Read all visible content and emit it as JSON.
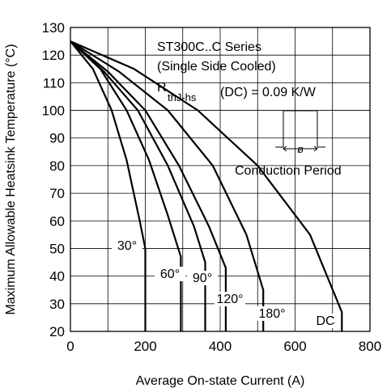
{
  "chart_data": {
    "type": "line",
    "title": "",
    "xlabel": "Average On-state Current (A)",
    "ylabel": "Maximum Allowable Heatsink Temperature (°C)",
    "xlim": [
      0,
      800
    ],
    "ylim": [
      20,
      130
    ],
    "xticks": [
      0,
      200,
      400,
      600,
      800
    ],
    "yticks": [
      20,
      30,
      40,
      50,
      60,
      70,
      80,
      90,
      100,
      110,
      120,
      130
    ],
    "grid": true,
    "annotations": {
      "line1": "ST300C..C Series",
      "line2": "(Single Side Cooled)",
      "r_main": "R",
      "r_sub": "thJ-hs",
      "r_value": "(DC) = 0.09 K/W",
      "phi": "ø",
      "conduction": "Conduction Period"
    },
    "series": [
      {
        "label": "30°",
        "x": [
          0,
          60,
          110,
          150,
          185,
          200,
          200
        ],
        "y": [
          125,
          115,
          100,
          82,
          60,
          50,
          20
        ]
      },
      {
        "label": "60°",
        "x": [
          0,
          80,
          150,
          210,
          260,
          295,
          295
        ],
        "y": [
          125,
          115,
          100,
          82,
          62,
          47,
          20
        ]
      },
      {
        "label": "90°",
        "x": [
          0,
          90,
          180,
          260,
          330,
          360,
          360
        ],
        "y": [
          125,
          114,
          100,
          80,
          58,
          45,
          20
        ]
      },
      {
        "label": "120°",
        "x": [
          0,
          100,
          200,
          290,
          370,
          415,
          415
        ],
        "y": [
          125,
          114,
          100,
          80,
          58,
          43,
          20
        ]
      },
      {
        "label": "180°",
        "x": [
          0,
          130,
          260,
          380,
          470,
          515,
          515
        ],
        "y": [
          125,
          114,
          100,
          80,
          55,
          35,
          20
        ]
      },
      {
        "label": "DC",
        "x": [
          0,
          170,
          340,
          500,
          640,
          725,
          725
        ],
        "y": [
          125,
          115,
          100,
          80,
          55,
          27,
          20
        ]
      }
    ]
  }
}
